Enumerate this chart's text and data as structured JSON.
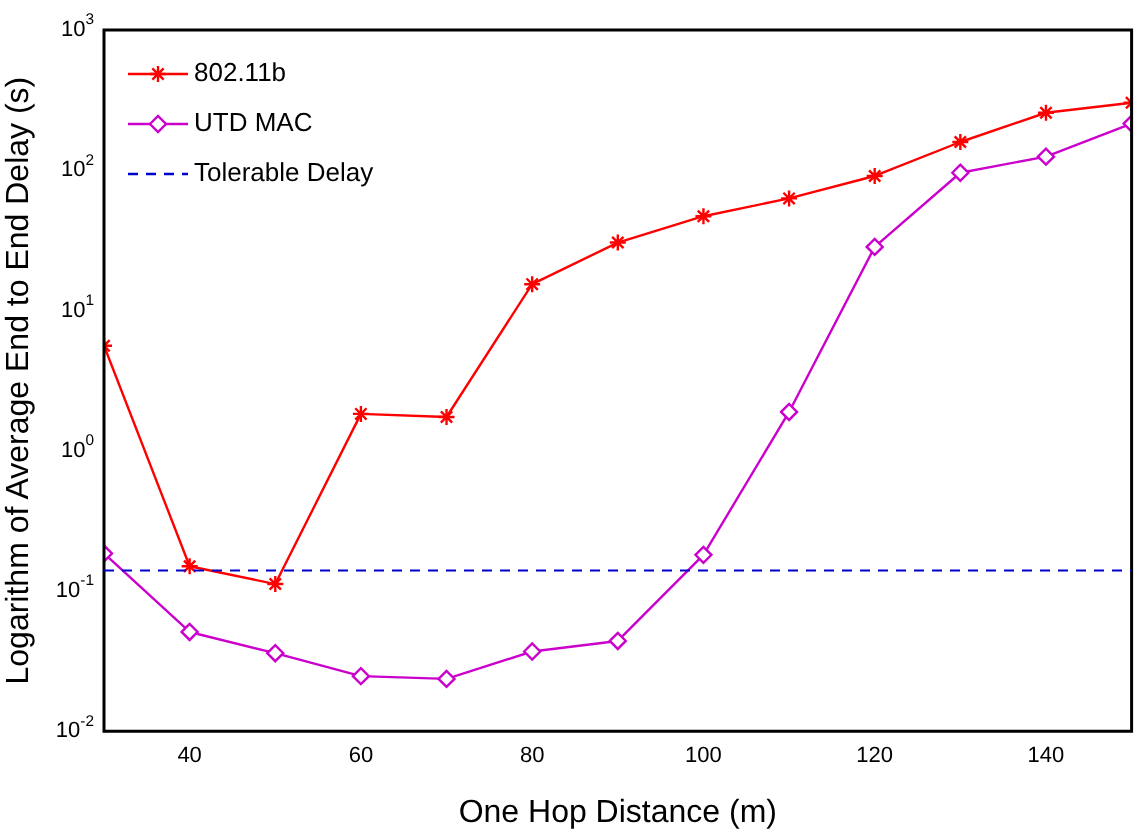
{
  "chart_data": {
    "type": "line",
    "xlabel": "One Hop Distance (m)",
    "ylabel": "Logarithm of Average End to End Delay (s)",
    "x": [
      30,
      40,
      50,
      60,
      70,
      80,
      90,
      100,
      110,
      120,
      130,
      140,
      150
    ],
    "series": [
      {
        "name": "802.11b",
        "color": "#ff0000",
        "marker": "cross",
        "values": [
          5.6,
          0.15,
          0.112,
          1.83,
          1.74,
          15.4,
          30.5,
          47,
          63,
          91,
          159,
          257,
          303
        ]
      },
      {
        "name": "UTD MAC",
        "color": "#cc00cc",
        "marker": "diamond",
        "values": [
          0.185,
          0.051,
          0.036,
          0.0247,
          0.0236,
          0.037,
          0.044,
          0.181,
          1.89,
          28.4,
          96,
          125,
          215
        ]
      }
    ],
    "ref_lines": [
      {
        "axis": "y",
        "value": 0.14,
        "label": "Tolerable Delay",
        "color": "#0000cc",
        "line_style": "dashed"
      }
    ],
    "log": "y",
    "xlim": [
      30,
      150
    ],
    "xticks": [
      40,
      60,
      80,
      100,
      120,
      140
    ],
    "ylim": [
      0.01,
      1000
    ],
    "yticks": [
      {
        "value": 0.01,
        "label": "10$^{-2}$"
      },
      {
        "value": 0.1,
        "label": "10$^{-1}$"
      },
      {
        "value": 1,
        "label": "10$^{0}$"
      },
      {
        "value": 10,
        "label": "10$^{1}$"
      },
      {
        "value": 100,
        "label": "10$^{2}$"
      },
      {
        "value": 1000,
        "label": "10$^{3}$"
      }
    ],
    "grid": false,
    "legend": "top left",
    "line_style": "solid"
  }
}
